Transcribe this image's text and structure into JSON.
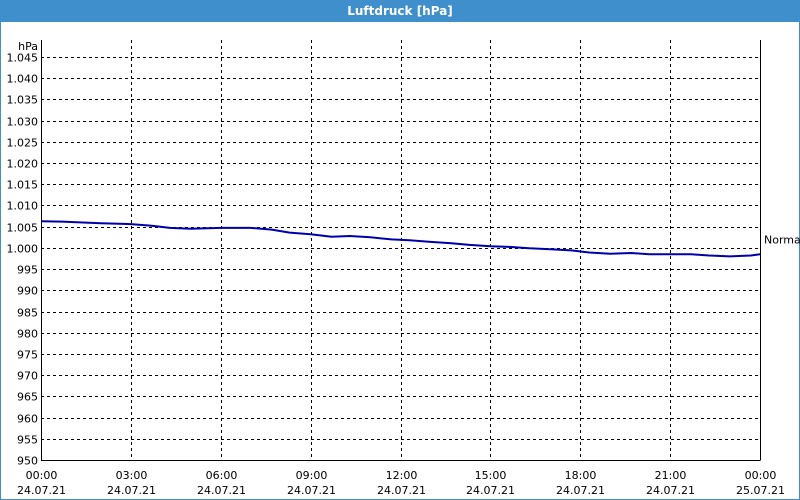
{
  "window": {
    "title": "Luftdruck [hPa]"
  },
  "colors": {
    "titlebar": "#3f8fcd",
    "series": "#0000aa",
    "grid": "#000000"
  },
  "chart_data": {
    "type": "line",
    "title": "Luftdruck [hPa]",
    "ylabel": "hPa",
    "ylim": [
      950,
      1049
    ],
    "yticks": [
      950,
      955,
      960,
      965,
      970,
      975,
      980,
      985,
      990,
      995,
      1000,
      1005,
      1010,
      1015,
      1020,
      1025,
      1030,
      1035,
      1040,
      1045
    ],
    "ytick_labels": [
      "950",
      "955",
      "960",
      "965",
      "970",
      "975",
      "980",
      "985",
      "990",
      "995",
      "1.000",
      "1.005",
      "1.010",
      "1.015",
      "1.020",
      "1.025",
      "1.030",
      "1.035",
      "1.040",
      "1.045"
    ],
    "xlim": [
      0,
      24
    ],
    "xticks": [
      0,
      3,
      6,
      9,
      12,
      15,
      18,
      21,
      24
    ],
    "xtick_labels": [
      {
        "time": "00:00",
        "date": "24.07.21"
      },
      {
        "time": "03:00",
        "date": "24.07.21"
      },
      {
        "time": "06:00",
        "date": "24.07.21"
      },
      {
        "time": "09:00",
        "date": "24.07.21"
      },
      {
        "time": "12:00",
        "date": "24.07.21"
      },
      {
        "time": "15:00",
        "date": "24.07.21"
      },
      {
        "time": "18:00",
        "date": "24.07.21"
      },
      {
        "time": "21:00",
        "date": "24.07.21"
      },
      {
        "time": "00:00",
        "date": "25.07.21"
      }
    ],
    "grid": true,
    "series": [
      {
        "name": "",
        "x": [
          0,
          0.7,
          1.3,
          2.0,
          3.0,
          3.7,
          4.3,
          5.0,
          6.0,
          7.0,
          7.7,
          8.3,
          9.0,
          9.7,
          10.3,
          11.0,
          11.7,
          12.3,
          13.0,
          13.7,
          14.3,
          15.0,
          15.7,
          16.3,
          17.0,
          17.7,
          18.3,
          19.0,
          19.7,
          20.3,
          21.0,
          21.7,
          22.3,
          23.0,
          23.7,
          24.0
        ],
        "y": [
          1006.3,
          1006.2,
          1006.0,
          1005.8,
          1005.6,
          1005.2,
          1004.7,
          1004.5,
          1004.7,
          1004.7,
          1004.3,
          1003.6,
          1003.2,
          1002.6,
          1002.8,
          1002.5,
          1002.0,
          1001.8,
          1001.4,
          1001.1,
          1000.7,
          1000.4,
          1000.2,
          999.9,
          999.7,
          999.4,
          998.9,
          998.6,
          998.8,
          998.5,
          998.5,
          998.5,
          998.2,
          998.0,
          998.2,
          998.5
        ]
      }
    ],
    "reference_label": "Normal",
    "reference_value": 1002.0
  }
}
